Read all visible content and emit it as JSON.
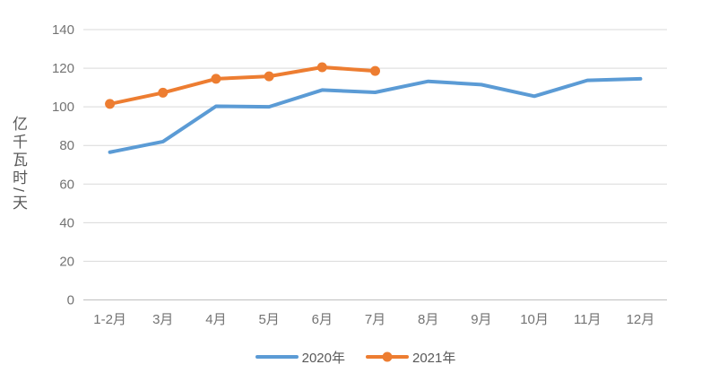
{
  "chart_data": {
    "type": "line",
    "title": "",
    "xlabel": "",
    "ylabel": "亿千瓦时/天",
    "categories": [
      "1-2月",
      "3月",
      "4月",
      "5月",
      "6月",
      "7月",
      "8月",
      "9月",
      "10月",
      "11月",
      "12月"
    ],
    "series": [
      {
        "name": "2020年",
        "color": "#5B9BD5",
        "marker": false,
        "values": [
          76.5,
          82,
          100.3,
          100,
          108.7,
          107.5,
          113.2,
          111.5,
          105.5,
          113.7,
          114.5
        ]
      },
      {
        "name": "2021年",
        "color": "#ED7D31",
        "marker": true,
        "values": [
          101.5,
          107.3,
          114.5,
          115.8,
          120.5,
          118.6
        ]
      }
    ],
    "ylim": [
      0,
      140
    ],
    "ytick_step": 20,
    "grid": true,
    "legend_position": "bottom",
    "gridline_color": "#D9D9D9",
    "axisline_color": "#BFBFBF",
    "axis_text_color": "#737373"
  }
}
